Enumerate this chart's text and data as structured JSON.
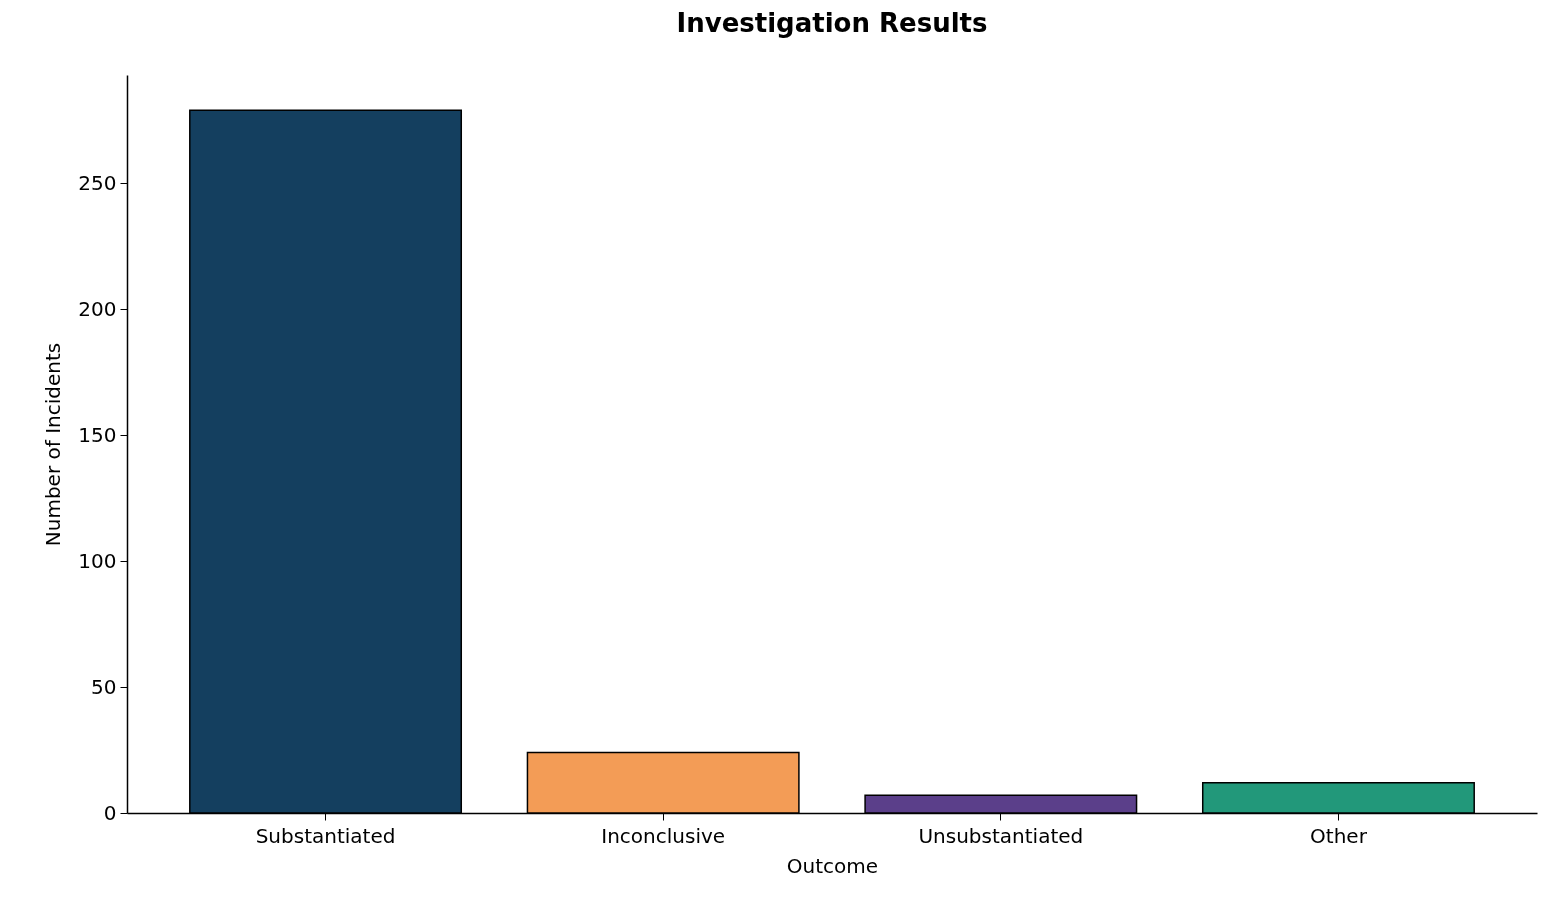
{
  "chart_data": {
    "type": "bar",
    "title": "Investigation Results",
    "xlabel": "Outcome",
    "ylabel": "Number of Incidents",
    "categories": [
      "Substantiated",
      "Inconclusive",
      "Unsubstantiated",
      "Other"
    ],
    "values": [
      279,
      24,
      7,
      12
    ],
    "colors": [
      "#143f5f",
      "#f39c56",
      "#5b3f8a",
      "#22987a"
    ],
    "ylim": [
      0,
      293
    ],
    "yticks": [
      0,
      50,
      100,
      150,
      200,
      250
    ],
    "grid": false
  }
}
